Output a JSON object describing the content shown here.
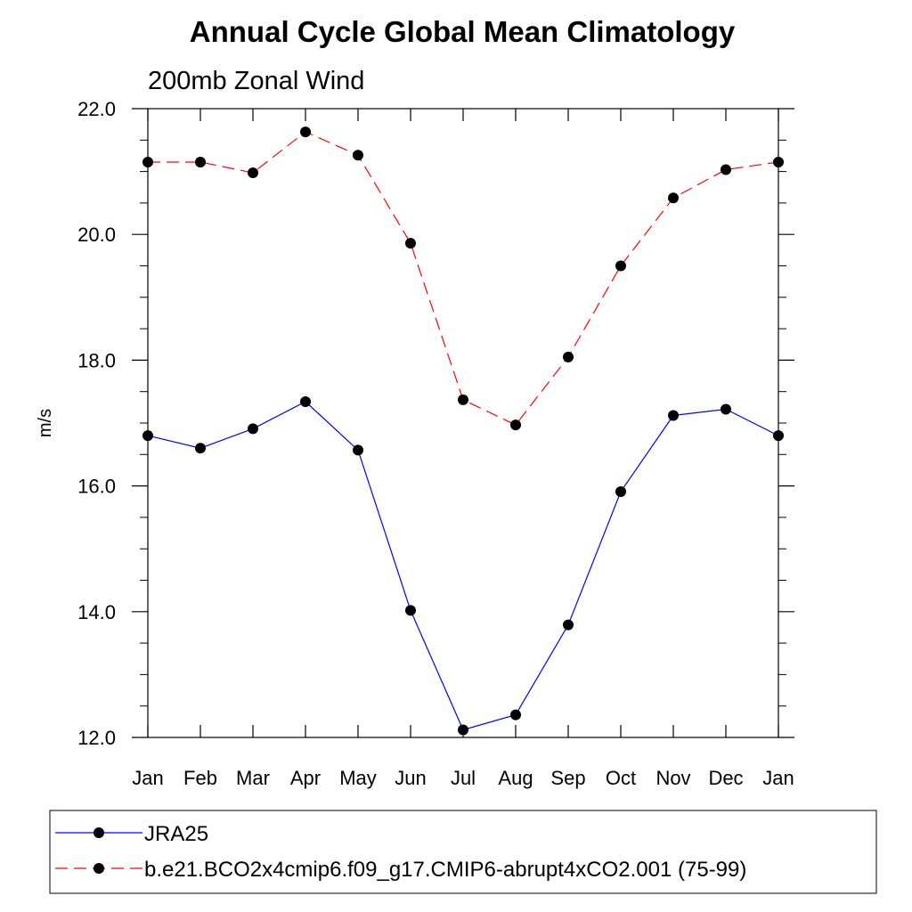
{
  "chart_data": {
    "type": "line",
    "title": "Annual Cycle Global Mean Climatology",
    "subtitle": "200mb Zonal Wind",
    "xlabel": "",
    "ylabel": "m/s",
    "categories": [
      "Jan",
      "Feb",
      "Mar",
      "Apr",
      "May",
      "Jun",
      "Jul",
      "Aug",
      "Sep",
      "Oct",
      "Nov",
      "Dec",
      "Jan"
    ],
    "ylim": [
      12.0,
      22.0
    ],
    "yticks": [
      "12.0",
      "14.0",
      "16.0",
      "18.0",
      "20.0",
      "22.0"
    ],
    "grid": false,
    "legend_position": "bottom",
    "series": [
      {
        "name": "JRA25",
        "color": "#0000ff",
        "dash": "solid",
        "values": [
          16.8,
          16.6,
          16.91,
          17.34,
          16.57,
          14.02,
          12.12,
          12.36,
          13.79,
          15.91,
          17.12,
          17.22,
          16.8
        ]
      },
      {
        "name": "b.e21.BCO2x4cmip6.f09_g17.CMIP6-abrupt4xCO2.001 (75-99)",
        "color": "#ff0000",
        "dash": "dashed",
        "values": [
          21.15,
          21.15,
          20.98,
          21.63,
          21.26,
          19.86,
          17.37,
          16.97,
          18.05,
          19.5,
          20.58,
          21.03,
          21.15
        ]
      }
    ]
  }
}
